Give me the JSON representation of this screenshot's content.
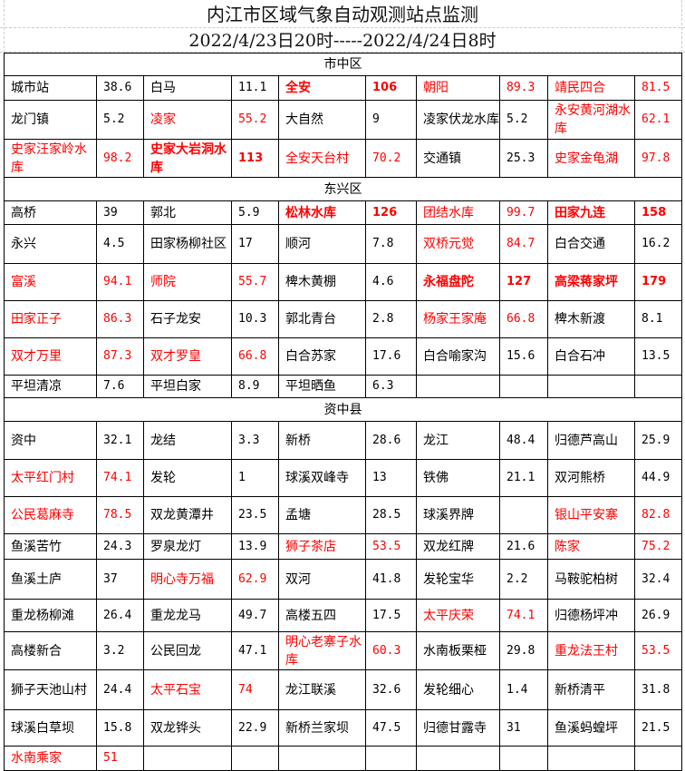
{
  "title": "内江市区域气象自动观测站点监测",
  "subtitle": "2022/4/23日20时-----2022/4/24日8时",
  "colors": {
    "alert": "#ff0000",
    "normal": "#000000"
  },
  "sections": [
    {
      "name": "市中区",
      "rows": [
        [
          {
            "n": "城市站",
            "v": "38.6"
          },
          {
            "n": "白马",
            "v": "11.1"
          },
          {
            "n": "全安",
            "v": "106",
            "s": "bold"
          },
          {
            "n": "朝阳",
            "v": "89.3",
            "s": "red"
          },
          {
            "n": "靖民四合",
            "v": "81.5",
            "s": "red"
          }
        ],
        [
          {
            "n": "龙门镇",
            "v": "5.2"
          },
          {
            "n": "凌家",
            "v": "55.2",
            "s": "red"
          },
          {
            "n": "大自然",
            "v": "9"
          },
          {
            "n": "凌家伏龙水库",
            "v": "5.2"
          },
          {
            "n": "永安黄河湖水库",
            "v": "62.1",
            "s": "red"
          }
        ],
        [
          {
            "n": "史家汪家岭水库",
            "v": "98.2",
            "s": "red"
          },
          {
            "n": "史家大岩洞水库",
            "v": "113",
            "s": "bold"
          },
          {
            "n": "全安天台村",
            "v": "70.2",
            "s": "red"
          },
          {
            "n": "交通镇",
            "v": "25.3"
          },
          {
            "n": "史家金龟湖",
            "v": "97.8",
            "s": "red"
          }
        ]
      ]
    },
    {
      "name": "东兴区",
      "rows": [
        [
          {
            "n": "高桥",
            "v": "39"
          },
          {
            "n": "郭北",
            "v": "5.9"
          },
          {
            "n": "松林水库",
            "v": "126",
            "s": "bold"
          },
          {
            "n": "团结水库",
            "v": "99.7",
            "s": "red"
          },
          {
            "n": "田家九连",
            "v": "158",
            "s": "bold"
          }
        ],
        [
          {
            "n": "永兴",
            "v": "4.5"
          },
          {
            "n": "田家杨柳社区",
            "v": "17"
          },
          {
            "n": "顺河",
            "v": "7.8"
          },
          {
            "n": "双桥元觉",
            "v": "84.7",
            "s": "red"
          },
          {
            "n": "白合交通",
            "v": "16.2"
          }
        ],
        [
          {
            "n": "富溪",
            "v": "94.1",
            "s": "red"
          },
          {
            "n": "师院",
            "v": "55.7",
            "s": "red"
          },
          {
            "n": "椑木黄棚",
            "v": "4.6"
          },
          {
            "n": "永福盘陀",
            "v": "127",
            "s": "bold"
          },
          {
            "n": "高梁蒋家坪",
            "v": "179",
            "s": "bold"
          }
        ],
        [
          {
            "n": "田家正子",
            "v": "86.3",
            "s": "red"
          },
          {
            "n": "石子龙安",
            "v": "10.3"
          },
          {
            "n": "郭北青台",
            "v": "2.8"
          },
          {
            "n": "杨家王家庵",
            "v": "66.8",
            "s": "red"
          },
          {
            "n": "椑木新渡",
            "v": "8.1"
          }
        ],
        [
          {
            "n": "双才万里",
            "v": "87.3",
            "s": "red"
          },
          {
            "n": "双才罗皇",
            "v": "66.8",
            "s": "red"
          },
          {
            "n": "白合苏家",
            "v": "17.6"
          },
          {
            "n": "白合喻家沟",
            "v": "15.6"
          },
          {
            "n": "白合石冲",
            "v": "13.5"
          }
        ],
        [
          {
            "n": "平坦清凉",
            "v": "7.6"
          },
          {
            "n": "平坦白家",
            "v": "8.9"
          },
          {
            "n": "平坦晒鱼",
            "v": "6.3"
          },
          {
            "n": "",
            "v": ""
          },
          {
            "n": "",
            "v": ""
          }
        ]
      ]
    },
    {
      "name": "资中县",
      "rows": [
        [
          {
            "n": "资中",
            "v": "32.1"
          },
          {
            "n": "龙结",
            "v": "3.3"
          },
          {
            "n": "新桥",
            "v": "28.6"
          },
          {
            "n": "龙江",
            "v": "48.4"
          },
          {
            "n": "归德芦高山",
            "v": "25.9"
          }
        ],
        [
          {
            "n": "太平红门村",
            "v": "74.1",
            "s": "red"
          },
          {
            "n": "发轮",
            "v": "1"
          },
          {
            "n": "球溪双峰寺",
            "v": "13"
          },
          {
            "n": "铁佛",
            "v": "21.1"
          },
          {
            "n": "双河熊桥",
            "v": "44.9"
          }
        ],
        [
          {
            "n": "公民葛麻寺",
            "v": "78.5",
            "s": "red"
          },
          {
            "n": "双龙黄潭井",
            "v": "23.5"
          },
          {
            "n": "孟塘",
            "v": "28.5"
          },
          {
            "n": "球溪界牌",
            "v": ""
          },
          {
            "n": "银山平安寨",
            "v": "82.8",
            "s": "red"
          }
        ],
        [
          {
            "n": "鱼溪苦竹",
            "v": "24.3"
          },
          {
            "n": "罗泉龙灯",
            "v": "13.9"
          },
          {
            "n": "狮子茶店",
            "v": "53.5",
            "s": "red"
          },
          {
            "n": "双龙红牌",
            "v": "21.6"
          },
          {
            "n": "陈家",
            "v": "75.2",
            "s": "red"
          }
        ],
        [
          {
            "n": "鱼溪土庐",
            "v": "37"
          },
          {
            "n": "明心寺万福",
            "v": "62.9",
            "s": "red"
          },
          {
            "n": "双河",
            "v": "41.8"
          },
          {
            "n": "发轮宝华",
            "v": "2.2"
          },
          {
            "n": "马鞍驼柏树",
            "v": "32.4"
          }
        ],
        [
          {
            "n": "重龙杨柳滩",
            "v": "26.4"
          },
          {
            "n": "重龙龙马",
            "v": "49.7"
          },
          {
            "n": "高楼五四",
            "v": "17.5"
          },
          {
            "n": "太平庆荣",
            "v": "74.1",
            "s": "red"
          },
          {
            "n": "归德杨坪冲",
            "v": "26.9"
          }
        ],
        [
          {
            "n": "高楼新合",
            "v": "3.2"
          },
          {
            "n": "公民回龙",
            "v": "47.1"
          },
          {
            "n": "明心老寨子水库",
            "v": "60.3",
            "s": "red"
          },
          {
            "n": "水南板栗桠",
            "v": "29.8"
          },
          {
            "n": "重龙法王村",
            "v": "53.5",
            "s": "red"
          }
        ],
        [
          {
            "n": "狮子天池山村",
            "v": "24.4"
          },
          {
            "n": "太平石宝",
            "v": "74",
            "s": "red"
          },
          {
            "n": "龙江联溪",
            "v": "32.6"
          },
          {
            "n": "发轮细心",
            "v": "1.4"
          },
          {
            "n": "新桥清平",
            "v": "31.8"
          }
        ],
        [
          {
            "n": "球溪白草坝",
            "v": "15.8"
          },
          {
            "n": "双龙铧头",
            "v": "22.9"
          },
          {
            "n": "新桥兰家坝",
            "v": "47.5"
          },
          {
            "n": "归德甘露寺",
            "v": "31"
          },
          {
            "n": "鱼溪蚂蝗坪",
            "v": "21.5"
          }
        ],
        [
          {
            "n": "水南乘家",
            "v": "51",
            "s": "red"
          },
          {
            "n": "",
            "v": ""
          },
          {
            "n": "",
            "v": ""
          },
          {
            "n": "",
            "v": ""
          },
          {
            "n": "",
            "v": ""
          }
        ]
      ]
    }
  ]
}
